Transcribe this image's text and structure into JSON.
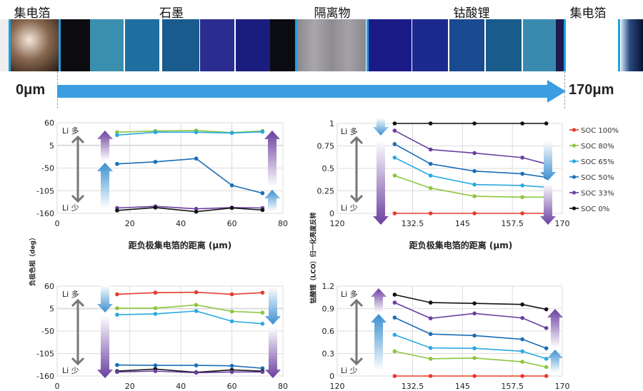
{
  "header": {
    "labels": [
      "集电箔",
      "石墨",
      "隔离物",
      "钴酸锂",
      "集电箔"
    ],
    "start_label": "0μm",
    "end_label": "170μm",
    "arrow_color": "#3a9ee0"
  },
  "annotations": {
    "li_more": "Li 多",
    "li_less": "Li 少"
  },
  "y_labels": {
    "anode": "负极色相（deg）",
    "cathode": "钴酸锂（LCO）归一化亮度反转"
  },
  "x_label": "距负极集电箔的距离 (μm)",
  "legend": [
    {
      "name": "SOC 100%",
      "color": "#e53b2c"
    },
    {
      "name": "SOC 80%",
      "color": "#8dc63f"
    },
    {
      "name": "SOC 65%",
      "color": "#29aae1"
    },
    {
      "name": "SOC 50%",
      "color": "#1b6db5"
    },
    {
      "name": "SOC 33%",
      "color": "#6b3fa0"
    },
    {
      "name": "SOC 0%",
      "color": "#111111"
    }
  ],
  "chart_data": [
    {
      "type": "line",
      "xlabel": "距负极集电箔的距离 (μm)",
      "ylabel": "",
      "xlim": [
        0,
        80
      ],
      "ylim": [
        -160,
        60
      ],
      "xticks": [
        "0",
        "20",
        "40",
        "60",
        "80"
      ],
      "yticks": [
        "60",
        "5",
        "-50",
        "-105",
        "-160"
      ],
      "x": [
        15,
        30,
        46,
        60,
        72
      ],
      "grid": true,
      "series": [
        {
          "name": "SOC 80%",
          "values": [
            37,
            40,
            41,
            36,
            40
          ]
        },
        {
          "name": "SOC 65%",
          "values": [
            30,
            37,
            37,
            35,
            38
          ]
        },
        {
          "name": "SOC 50%",
          "values": [
            -40,
            -35,
            -27,
            -92,
            -111
          ]
        },
        {
          "name": "SOC 33%",
          "values": [
            -147,
            -143,
            -149,
            -146,
            -147
          ]
        },
        {
          "name": "SOC 0%",
          "values": [
            -153,
            -146,
            -156,
            -147,
            -152
          ]
        }
      ]
    },
    {
      "type": "line",
      "xlabel": "距负极集电箔的距离 (μm)",
      "ylabel": "",
      "xlim": [
        120,
        170
      ],
      "ylim": [
        0,
        1
      ],
      "xticks": [
        "120",
        "132.5",
        "145",
        "157.5",
        "170"
      ],
      "yticks": [
        "1",
        "0.75",
        "0.5",
        "0.25",
        "0"
      ],
      "x": [
        128,
        137,
        148,
        160,
        166
      ],
      "grid": true,
      "legend": "right",
      "series": [
        {
          "name": "SOC 100%",
          "values": [
            0,
            0,
            0,
            0,
            0
          ]
        },
        {
          "name": "SOC 80%",
          "values": [
            0.42,
            0.28,
            0.19,
            0.18,
            0.18
          ]
        },
        {
          "name": "SOC 65%",
          "values": [
            0.62,
            0.42,
            0.32,
            0.31,
            0.29
          ]
        },
        {
          "name": "SOC 50%",
          "values": [
            0.77,
            0.55,
            0.47,
            0.44,
            0.4
          ]
        },
        {
          "name": "SOC 33%",
          "values": [
            0.92,
            0.71,
            0.67,
            0.62,
            0.55
          ]
        },
        {
          "name": "SOC 0%",
          "values": [
            1,
            1,
            1,
            1,
            1
          ]
        }
      ]
    },
    {
      "type": "line",
      "xlabel": "",
      "ylabel": "负极色相（deg）",
      "xlim": [
        0,
        80
      ],
      "ylim": [
        -160,
        60
      ],
      "xticks": [
        "0",
        "20",
        "40",
        "60",
        "80"
      ],
      "yticks": [
        "60",
        "5",
        "-50",
        "-105",
        "-160"
      ],
      "x": [
        15,
        30,
        46,
        60,
        72
      ],
      "grid": true,
      "series": [
        {
          "name": "SOC 100%",
          "values": [
            40,
            44,
            45,
            40,
            44
          ]
        },
        {
          "name": "SOC 80%",
          "values": [
            6,
            6,
            14,
            -2,
            -5
          ]
        },
        {
          "name": "SOC 65%",
          "values": [
            -10,
            -8,
            -1,
            -26,
            -32
          ]
        },
        {
          "name": "SOC 50%",
          "values": [
            -133,
            -134,
            -134,
            -135,
            -141
          ]
        },
        {
          "name": "SOC 0%",
          "values": [
            -148,
            -143,
            -151,
            -145,
            -148
          ]
        },
        {
          "name": "SOC 33%",
          "values": [
            -150,
            -148,
            -152,
            -150,
            -150
          ]
        }
      ]
    },
    {
      "type": "line",
      "xlabel": "",
      "ylabel": "钴酸锂（LCO）归一化亮度反转",
      "xlim": [
        120,
        170
      ],
      "ylim": [
        0,
        1.2
      ],
      "xticks": [
        "120",
        "132.5",
        "145",
        "157.5",
        "170"
      ],
      "yticks": [
        "1.2",
        "0.9",
        "0.6",
        "0.3",
        "0"
      ],
      "x": [
        128,
        137,
        148,
        160,
        166
      ],
      "grid": true,
      "series": [
        {
          "name": "SOC 100%",
          "values": [
            0,
            0,
            0,
            0,
            0
          ]
        },
        {
          "name": "SOC 80%",
          "values": [
            0.33,
            0.23,
            0.24,
            0.19,
            0.12
          ]
        },
        {
          "name": "SOC 65%",
          "values": [
            0.55,
            0.375,
            0.37,
            0.33,
            0.23
          ]
        },
        {
          "name": "SOC 50%",
          "values": [
            0.78,
            0.56,
            0.54,
            0.49,
            0.37
          ]
        },
        {
          "name": "SOC 33%",
          "values": [
            0.98,
            0.77,
            0.835,
            0.775,
            0.64
          ]
        },
        {
          "name": "SOC 0%",
          "values": [
            1.086,
            0.98,
            0.97,
            0.955,
            0.89
          ]
        }
      ]
    }
  ]
}
